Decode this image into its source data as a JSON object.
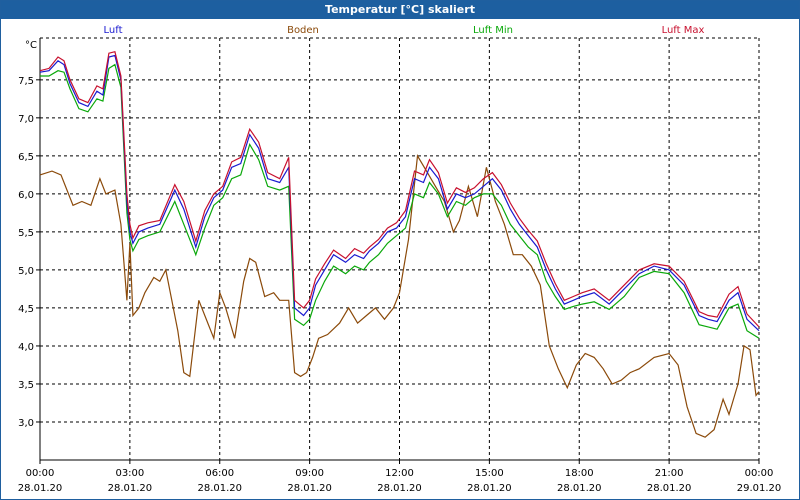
{
  "window": {
    "title": "Temperatur [°C] skaliert"
  },
  "colors": {
    "luft": "#1a1ad0",
    "boden": "#8b4a0a",
    "luftmin": "#0aa80a",
    "luftmax": "#c8102e",
    "titlebar": "#1d5fa0",
    "grid": "#000000"
  },
  "chart_data": {
    "type": "line",
    "title": "Temperatur [°C] skaliert",
    "ylabel": "°C",
    "ylim": [
      2.5,
      8.05
    ],
    "xlim": [
      0,
      24
    ],
    "yticks": [
      3.0,
      3.5,
      4.0,
      4.5,
      5.0,
      5.5,
      6.0,
      6.5,
      7.0,
      7.5
    ],
    "ytick_labels": [
      "3,0",
      "3,5",
      "4,0",
      "4,5",
      "5,0",
      "5,5",
      "6,0",
      "6,5",
      "7,0",
      "7,5"
    ],
    "xticks": [
      {
        "hour": 0,
        "time": "00:00",
        "date": "28.01.20"
      },
      {
        "hour": 3,
        "time": "03:00",
        "date": "28.01.20"
      },
      {
        "hour": 6,
        "time": "06:00",
        "date": "28.01.20"
      },
      {
        "hour": 9,
        "time": "09:00",
        "date": "28.01.20"
      },
      {
        "hour": 12,
        "time": "12:00",
        "date": "28.01.20"
      },
      {
        "hour": 15,
        "time": "15:00",
        "date": "28.01.20"
      },
      {
        "hour": 18,
        "time": "18:00",
        "date": "28.01.20"
      },
      {
        "hour": 21,
        "time": "21:00",
        "date": "28.01.20"
      },
      {
        "hour": 24,
        "time": "00:00",
        "date": "29.01.20"
      }
    ],
    "grid": true,
    "legend_position": "top",
    "series": [
      {
        "key": "luft",
        "name": "Luft",
        "x": [
          0,
          0.3,
          0.6,
          0.8,
          1.0,
          1.3,
          1.6,
          1.9,
          2.1,
          2.3,
          2.5,
          2.7,
          2.9,
          3.0,
          3.1,
          3.3,
          3.6,
          4.0,
          4.5,
          4.8,
          5.2,
          5.5,
          5.8,
          6.1,
          6.4,
          6.7,
          7.0,
          7.3,
          7.6,
          8.0,
          8.3,
          8.5,
          8.8,
          9.0,
          9.2,
          9.5,
          9.8,
          10.2,
          10.5,
          10.8,
          11.0,
          11.3,
          11.6,
          11.9,
          12.2,
          12.5,
          12.8,
          13.0,
          13.3,
          13.6,
          13.9,
          14.2,
          14.5,
          14.8,
          15.1,
          15.4,
          15.7,
          16.0,
          16.3,
          16.6,
          16.9,
          17.2,
          17.5,
          17.8,
          18.1,
          18.5,
          19.0,
          19.5,
          20.0,
          20.5,
          21.0,
          21.5,
          22.0,
          22.3,
          22.6,
          23.0,
          23.3,
          23.6,
          24.0
        ],
        "y": [
          7.6,
          7.62,
          7.75,
          7.7,
          7.45,
          7.2,
          7.15,
          7.35,
          7.3,
          7.8,
          7.82,
          7.5,
          5.9,
          5.5,
          5.35,
          5.5,
          5.55,
          5.6,
          6.05,
          5.8,
          5.3,
          5.7,
          5.95,
          6.05,
          6.35,
          6.4,
          6.78,
          6.6,
          6.2,
          6.15,
          6.35,
          4.5,
          4.4,
          4.5,
          4.8,
          5.0,
          5.2,
          5.1,
          5.2,
          5.15,
          5.25,
          5.35,
          5.5,
          5.55,
          5.7,
          6.2,
          6.15,
          6.35,
          6.2,
          5.8,
          6.0,
          5.95,
          6.0,
          6.1,
          6.2,
          6.05,
          5.8,
          5.6,
          5.45,
          5.3,
          5.0,
          4.75,
          4.55,
          4.6,
          4.65,
          4.7,
          4.55,
          4.75,
          4.95,
          5.05,
          5.0,
          4.8,
          4.4,
          4.35,
          4.32,
          4.6,
          4.7,
          4.35,
          4.2
        ]
      },
      {
        "key": "boden",
        "name": "Boden",
        "x": [
          0,
          0.4,
          0.7,
          0.9,
          1.1,
          1.4,
          1.7,
          2.0,
          2.2,
          2.5,
          2.7,
          2.9,
          3.0,
          3.1,
          3.3,
          3.5,
          3.8,
          4.0,
          4.2,
          4.4,
          4.6,
          4.8,
          5.0,
          5.3,
          5.6,
          5.8,
          6.0,
          6.2,
          6.5,
          6.8,
          7.0,
          7.2,
          7.5,
          7.8,
          8.0,
          8.3,
          8.5,
          8.7,
          8.9,
          9.1,
          9.3,
          9.6,
          10.0,
          10.3,
          10.6,
          10.9,
          11.2,
          11.5,
          11.8,
          12.0,
          12.3,
          12.6,
          12.9,
          13.2,
          13.5,
          13.8,
          14.0,
          14.3,
          14.6,
          14.9,
          15.2,
          15.5,
          15.8,
          16.1,
          16.4,
          16.7,
          17.0,
          17.3,
          17.6,
          17.9,
          18.2,
          18.5,
          18.8,
          19.1,
          19.4,
          19.7,
          20.0,
          20.5,
          21.0,
          21.3,
          21.6,
          21.9,
          22.2,
          22.5,
          22.8,
          23.0,
          23.3,
          23.5,
          23.7,
          23.9,
          24.0
        ],
        "y": [
          6.25,
          6.3,
          6.25,
          6.05,
          5.85,
          5.9,
          5.85,
          6.2,
          6.0,
          6.05,
          5.6,
          4.6,
          5.35,
          4.4,
          4.5,
          4.7,
          4.9,
          4.85,
          5.0,
          4.6,
          4.2,
          3.65,
          3.6,
          4.6,
          4.3,
          4.1,
          4.7,
          4.5,
          4.1,
          4.85,
          5.15,
          5.1,
          4.65,
          4.7,
          4.6,
          4.6,
          3.65,
          3.6,
          3.65,
          3.85,
          4.1,
          4.15,
          4.3,
          4.5,
          4.3,
          4.4,
          4.5,
          4.35,
          4.5,
          4.7,
          5.4,
          6.5,
          6.3,
          6.1,
          5.9,
          5.5,
          5.65,
          6.1,
          5.7,
          6.35,
          5.9,
          5.6,
          5.2,
          5.2,
          5.05,
          4.8,
          4.0,
          3.7,
          3.45,
          3.75,
          3.9,
          3.85,
          3.7,
          3.5,
          3.55,
          3.65,
          3.7,
          3.85,
          3.9,
          3.75,
          3.2,
          2.85,
          2.8,
          2.9,
          3.3,
          3.1,
          3.5,
          4.0,
          3.95,
          3.35,
          3.4
        ]
      },
      {
        "key": "luftmin",
        "name": "Luft Min",
        "x": [
          0,
          0.3,
          0.6,
          0.8,
          1.0,
          1.3,
          1.6,
          1.9,
          2.1,
          2.3,
          2.5,
          2.7,
          2.9,
          3.0,
          3.1,
          3.3,
          3.6,
          4.0,
          4.5,
          4.8,
          5.2,
          5.5,
          5.8,
          6.1,
          6.4,
          6.7,
          7.0,
          7.3,
          7.6,
          8.0,
          8.3,
          8.5,
          8.8,
          9.0,
          9.2,
          9.5,
          9.8,
          10.2,
          10.5,
          10.8,
          11.0,
          11.3,
          11.6,
          11.9,
          12.2,
          12.5,
          12.8,
          13.0,
          13.3,
          13.6,
          13.9,
          14.2,
          14.5,
          14.8,
          15.1,
          15.4,
          15.7,
          16.0,
          16.3,
          16.6,
          16.9,
          17.2,
          17.5,
          17.8,
          18.1,
          18.5,
          19.0,
          19.5,
          20.0,
          20.5,
          21.0,
          21.5,
          22.0,
          22.3,
          22.6,
          23.0,
          23.3,
          23.6,
          24.0
        ],
        "y": [
          7.55,
          7.55,
          7.62,
          7.6,
          7.38,
          7.12,
          7.08,
          7.25,
          7.22,
          7.65,
          7.7,
          7.4,
          5.75,
          5.4,
          5.25,
          5.4,
          5.45,
          5.5,
          5.9,
          5.6,
          5.2,
          5.55,
          5.85,
          5.95,
          6.2,
          6.25,
          6.65,
          6.45,
          6.1,
          6.05,
          6.1,
          4.35,
          4.27,
          4.35,
          4.6,
          4.85,
          5.05,
          4.95,
          5.05,
          5.0,
          5.1,
          5.2,
          5.35,
          5.45,
          5.55,
          6.0,
          5.95,
          6.15,
          6.0,
          5.7,
          5.9,
          5.85,
          5.95,
          6.0,
          6.0,
          5.85,
          5.6,
          5.45,
          5.3,
          5.2,
          4.85,
          4.65,
          4.48,
          4.52,
          4.55,
          4.58,
          4.48,
          4.65,
          4.9,
          4.98,
          4.95,
          4.7,
          4.28,
          4.25,
          4.22,
          4.5,
          4.55,
          4.2,
          4.1
        ]
      },
      {
        "key": "luftmax",
        "name": "Luft Max",
        "x": [
          0,
          0.3,
          0.6,
          0.8,
          1.0,
          1.3,
          1.6,
          1.9,
          2.1,
          2.3,
          2.5,
          2.7,
          2.9,
          3.0,
          3.1,
          3.3,
          3.6,
          4.0,
          4.5,
          4.8,
          5.2,
          5.5,
          5.8,
          6.1,
          6.4,
          6.7,
          7.0,
          7.3,
          7.6,
          8.0,
          8.3,
          8.5,
          8.8,
          9.0,
          9.2,
          9.5,
          9.8,
          10.2,
          10.5,
          10.8,
          11.0,
          11.3,
          11.6,
          11.9,
          12.2,
          12.5,
          12.8,
          13.0,
          13.3,
          13.6,
          13.9,
          14.2,
          14.5,
          14.8,
          15.1,
          15.4,
          15.7,
          16.0,
          16.3,
          16.6,
          16.9,
          17.2,
          17.5,
          17.8,
          18.1,
          18.5,
          19.0,
          19.5,
          20.0,
          20.5,
          21.0,
          21.5,
          22.0,
          22.3,
          22.6,
          23.0,
          23.3,
          23.6,
          24.0
        ],
        "y": [
          7.62,
          7.65,
          7.8,
          7.75,
          7.5,
          7.25,
          7.2,
          7.42,
          7.38,
          7.85,
          7.87,
          7.55,
          6.0,
          5.6,
          5.42,
          5.58,
          5.62,
          5.65,
          6.12,
          5.9,
          5.38,
          5.78,
          6.0,
          6.1,
          6.42,
          6.48,
          6.85,
          6.68,
          6.28,
          6.2,
          6.48,
          4.6,
          4.5,
          4.6,
          4.88,
          5.08,
          5.26,
          5.15,
          5.28,
          5.22,
          5.3,
          5.4,
          5.55,
          5.62,
          5.78,
          6.3,
          6.25,
          6.45,
          6.28,
          5.88,
          6.08,
          6.02,
          6.08,
          6.2,
          6.28,
          6.12,
          5.88,
          5.68,
          5.52,
          5.38,
          5.08,
          4.82,
          4.6,
          4.65,
          4.7,
          4.75,
          4.6,
          4.8,
          5.0,
          5.08,
          5.05,
          4.85,
          4.45,
          4.4,
          4.38,
          4.68,
          4.78,
          4.42,
          4.25
        ]
      }
    ]
  }
}
